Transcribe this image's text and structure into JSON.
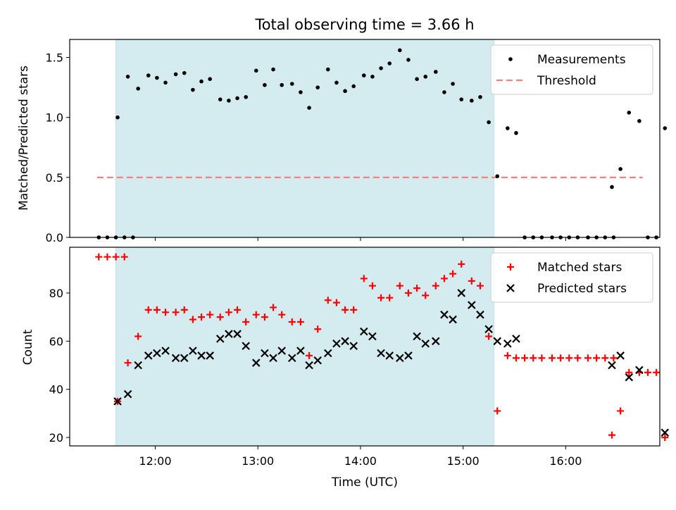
{
  "figure": {
    "title": "Total observing time = 3.66 h",
    "xlabel": "Time (UTC)"
  },
  "chart_data": [
    {
      "type": "scatter",
      "ylabel": "Matched/Predicted stars",
      "xlim": [
        "11:10",
        "16:55"
      ],
      "ylim": [
        0,
        1.65
      ],
      "yticks": [
        "0.0",
        "0.5",
        "1.0",
        "1.5"
      ],
      "xticks": [
        "12:00",
        "13:00",
        "14:00",
        "15:00",
        "16:00"
      ],
      "shaded_interval": [
        "11:37",
        "15:18"
      ],
      "legend_position": "top-right",
      "threshold": {
        "name": "Threshold",
        "y": 0.5,
        "x_range": [
          "11:26",
          "16:45"
        ],
        "color": "#ff7f7f"
      },
      "series": [
        {
          "name": "Measurements",
          "color": "#000000",
          "points": [
            [
              "11:27",
              0
            ],
            [
              "11:32",
              0
            ],
            [
              "11:37",
              0
            ],
            [
              "11:42",
              0
            ],
            [
              "11:47",
              0.0
            ],
            [
              "11:38",
              1.0
            ],
            [
              "11:44",
              1.34
            ],
            [
              "11:50",
              1.24
            ],
            [
              "11:56",
              1.35
            ],
            [
              "12:01",
              1.33
            ],
            [
              "12:06",
              1.29
            ],
            [
              "12:12",
              1.36
            ],
            [
              "12:17",
              1.37
            ],
            [
              "12:22",
              1.23
            ],
            [
              "12:27",
              1.3
            ],
            [
              "12:32",
              1.32
            ],
            [
              "12:38",
              1.15
            ],
            [
              "12:43",
              1.14
            ],
            [
              "12:48",
              1.16
            ],
            [
              "12:53",
              1.17
            ],
            [
              "12:59",
              1.39
            ],
            [
              "13:04",
              1.27
            ],
            [
              "13:09",
              1.4
            ],
            [
              "13:14",
              1.27
            ],
            [
              "13:20",
              1.28
            ],
            [
              "13:25",
              1.21
            ],
            [
              "13:30",
              1.08
            ],
            [
              "13:35",
              1.25
            ],
            [
              "13:41",
              1.4
            ],
            [
              "13:46",
              1.29
            ],
            [
              "13:51",
              1.22
            ],
            [
              "13:56",
              1.26
            ],
            [
              "14:02",
              1.35
            ],
            [
              "14:07",
              1.34
            ],
            [
              "14:12",
              1.41
            ],
            [
              "14:17",
              1.45
            ],
            [
              "14:23",
              1.56
            ],
            [
              "14:28",
              1.48
            ],
            [
              "14:33",
              1.32
            ],
            [
              "14:38",
              1.34
            ],
            [
              "14:44",
              1.38
            ],
            [
              "14:49",
              1.21
            ],
            [
              "14:54",
              1.28
            ],
            [
              "14:59",
              1.15
            ],
            [
              "15:05",
              1.14
            ],
            [
              "15:10",
              1.17
            ],
            [
              "15:15",
              0.96
            ],
            [
              "15:20",
              0.51
            ],
            [
              "15:26",
              0.91
            ],
            [
              "15:31",
              0.87
            ],
            [
              "15:36",
              0
            ],
            [
              "15:41",
              0
            ],
            [
              "15:46",
              0
            ],
            [
              "15:52",
              0
            ],
            [
              "15:57",
              0
            ],
            [
              "16:02",
              0
            ],
            [
              "16:07",
              0
            ],
            [
              "16:13",
              0
            ],
            [
              "16:18",
              0
            ],
            [
              "16:23",
              0
            ],
            [
              "16:28",
              0
            ],
            [
              "16:27",
              0.42
            ],
            [
              "16:32",
              0.57
            ],
            [
              "16:37",
              1.04
            ],
            [
              "16:43",
              0.97
            ],
            [
              "16:48",
              0
            ],
            [
              "16:53",
              0
            ],
            [
              "16:58",
              0.91
            ]
          ]
        }
      ]
    },
    {
      "type": "scatter",
      "ylabel": "Count",
      "xlim": [
        "11:10",
        "16:55"
      ],
      "ylim": [
        16.5,
        99
      ],
      "yticks": [
        "20",
        "40",
        "60",
        "80"
      ],
      "xticks": [
        "12:00",
        "13:00",
        "14:00",
        "15:00",
        "16:00"
      ],
      "shaded_interval": [
        "11:37",
        "15:18"
      ],
      "legend_position": "top-right",
      "series": [
        {
          "name": "Matched stars",
          "color": "#ff0000",
          "marker": "plus",
          "points": [
            [
              "11:27",
              95
            ],
            [
              "11:32",
              95
            ],
            [
              "11:37",
              95
            ],
            [
              "11:42",
              95
            ],
            [
              "11:38",
              35
            ],
            [
              "11:44",
              51
            ],
            [
              "11:50",
              62
            ],
            [
              "11:56",
              73
            ],
            [
              "12:01",
              73
            ],
            [
              "12:06",
              72
            ],
            [
              "12:12",
              72
            ],
            [
              "12:17",
              73
            ],
            [
              "12:22",
              69
            ],
            [
              "12:27",
              70
            ],
            [
              "12:32",
              71
            ],
            [
              "12:38",
              70
            ],
            [
              "12:43",
              72
            ],
            [
              "12:48",
              73
            ],
            [
              "12:53",
              68
            ],
            [
              "12:59",
              71
            ],
            [
              "13:04",
              70
            ],
            [
              "13:09",
              74
            ],
            [
              "13:14",
              71
            ],
            [
              "13:20",
              68
            ],
            [
              "13:25",
              68
            ],
            [
              "13:30",
              54
            ],
            [
              "13:35",
              65
            ],
            [
              "13:41",
              77
            ],
            [
              "13:46",
              76
            ],
            [
              "13:51",
              73
            ],
            [
              "13:56",
              73
            ],
            [
              "14:02",
              86
            ],
            [
              "14:07",
              83
            ],
            [
              "14:12",
              78
            ],
            [
              "14:17",
              78
            ],
            [
              "14:23",
              83
            ],
            [
              "14:28",
              80
            ],
            [
              "14:33",
              82
            ],
            [
              "14:38",
              79
            ],
            [
              "14:44",
              83
            ],
            [
              "14:49",
              86
            ],
            [
              "14:54",
              88
            ],
            [
              "14:59",
              92
            ],
            [
              "15:05",
              85
            ],
            [
              "15:10",
              83
            ],
            [
              "15:15",
              62
            ],
            [
              "15:20",
              31
            ],
            [
              "15:26",
              54
            ],
            [
              "15:31",
              53
            ],
            [
              "15:36",
              53
            ],
            [
              "15:41",
              53
            ],
            [
              "15:46",
              53
            ],
            [
              "15:52",
              53
            ],
            [
              "15:57",
              53
            ],
            [
              "16:02",
              53
            ],
            [
              "16:07",
              53
            ],
            [
              "16:13",
              53
            ],
            [
              "16:18",
              53
            ],
            [
              "16:23",
              53
            ],
            [
              "16:28",
              53
            ],
            [
              "16:27",
              21
            ],
            [
              "16:32",
              31
            ],
            [
              "16:37",
              47
            ],
            [
              "16:43",
              47
            ],
            [
              "16:48",
              47
            ],
            [
              "16:53",
              47
            ],
            [
              "16:58",
              20
            ]
          ]
        },
        {
          "name": "Predicted stars",
          "color": "#000000",
          "marker": "x",
          "points": [
            [
              "11:38",
              35
            ],
            [
              "11:44",
              38
            ],
            [
              "11:50",
              50
            ],
            [
              "11:56",
              54
            ],
            [
              "12:01",
              55
            ],
            [
              "12:06",
              56
            ],
            [
              "12:12",
              53
            ],
            [
              "12:17",
              53
            ],
            [
              "12:22",
              56
            ],
            [
              "12:27",
              54
            ],
            [
              "12:32",
              54
            ],
            [
              "12:38",
              61
            ],
            [
              "12:43",
              63
            ],
            [
              "12:48",
              63
            ],
            [
              "12:53",
              58
            ],
            [
              "12:59",
              51
            ],
            [
              "13:04",
              55
            ],
            [
              "13:09",
              53
            ],
            [
              "13:14",
              56
            ],
            [
              "13:20",
              53
            ],
            [
              "13:25",
              56
            ],
            [
              "13:30",
              50
            ],
            [
              "13:35",
              52
            ],
            [
              "13:41",
              55
            ],
            [
              "13:46",
              59
            ],
            [
              "13:51",
              60
            ],
            [
              "13:56",
              58
            ],
            [
              "14:02",
              64
            ],
            [
              "14:07",
              62
            ],
            [
              "14:12",
              55
            ],
            [
              "14:17",
              54
            ],
            [
              "14:23",
              53
            ],
            [
              "14:28",
              54
            ],
            [
              "14:33",
              62
            ],
            [
              "14:38",
              59
            ],
            [
              "14:44",
              60
            ],
            [
              "14:49",
              71
            ],
            [
              "14:54",
              69
            ],
            [
              "14:59",
              80
            ],
            [
              "15:05",
              75
            ],
            [
              "15:10",
              71
            ],
            [
              "15:15",
              65
            ],
            [
              "15:20",
              60
            ],
            [
              "15:26",
              59
            ],
            [
              "15:31",
              61
            ],
            [
              "16:27",
              50
            ],
            [
              "16:32",
              54
            ],
            [
              "16:37",
              45
            ],
            [
              "16:43",
              48
            ],
            [
              "16:58",
              22
            ]
          ]
        }
      ]
    }
  ]
}
